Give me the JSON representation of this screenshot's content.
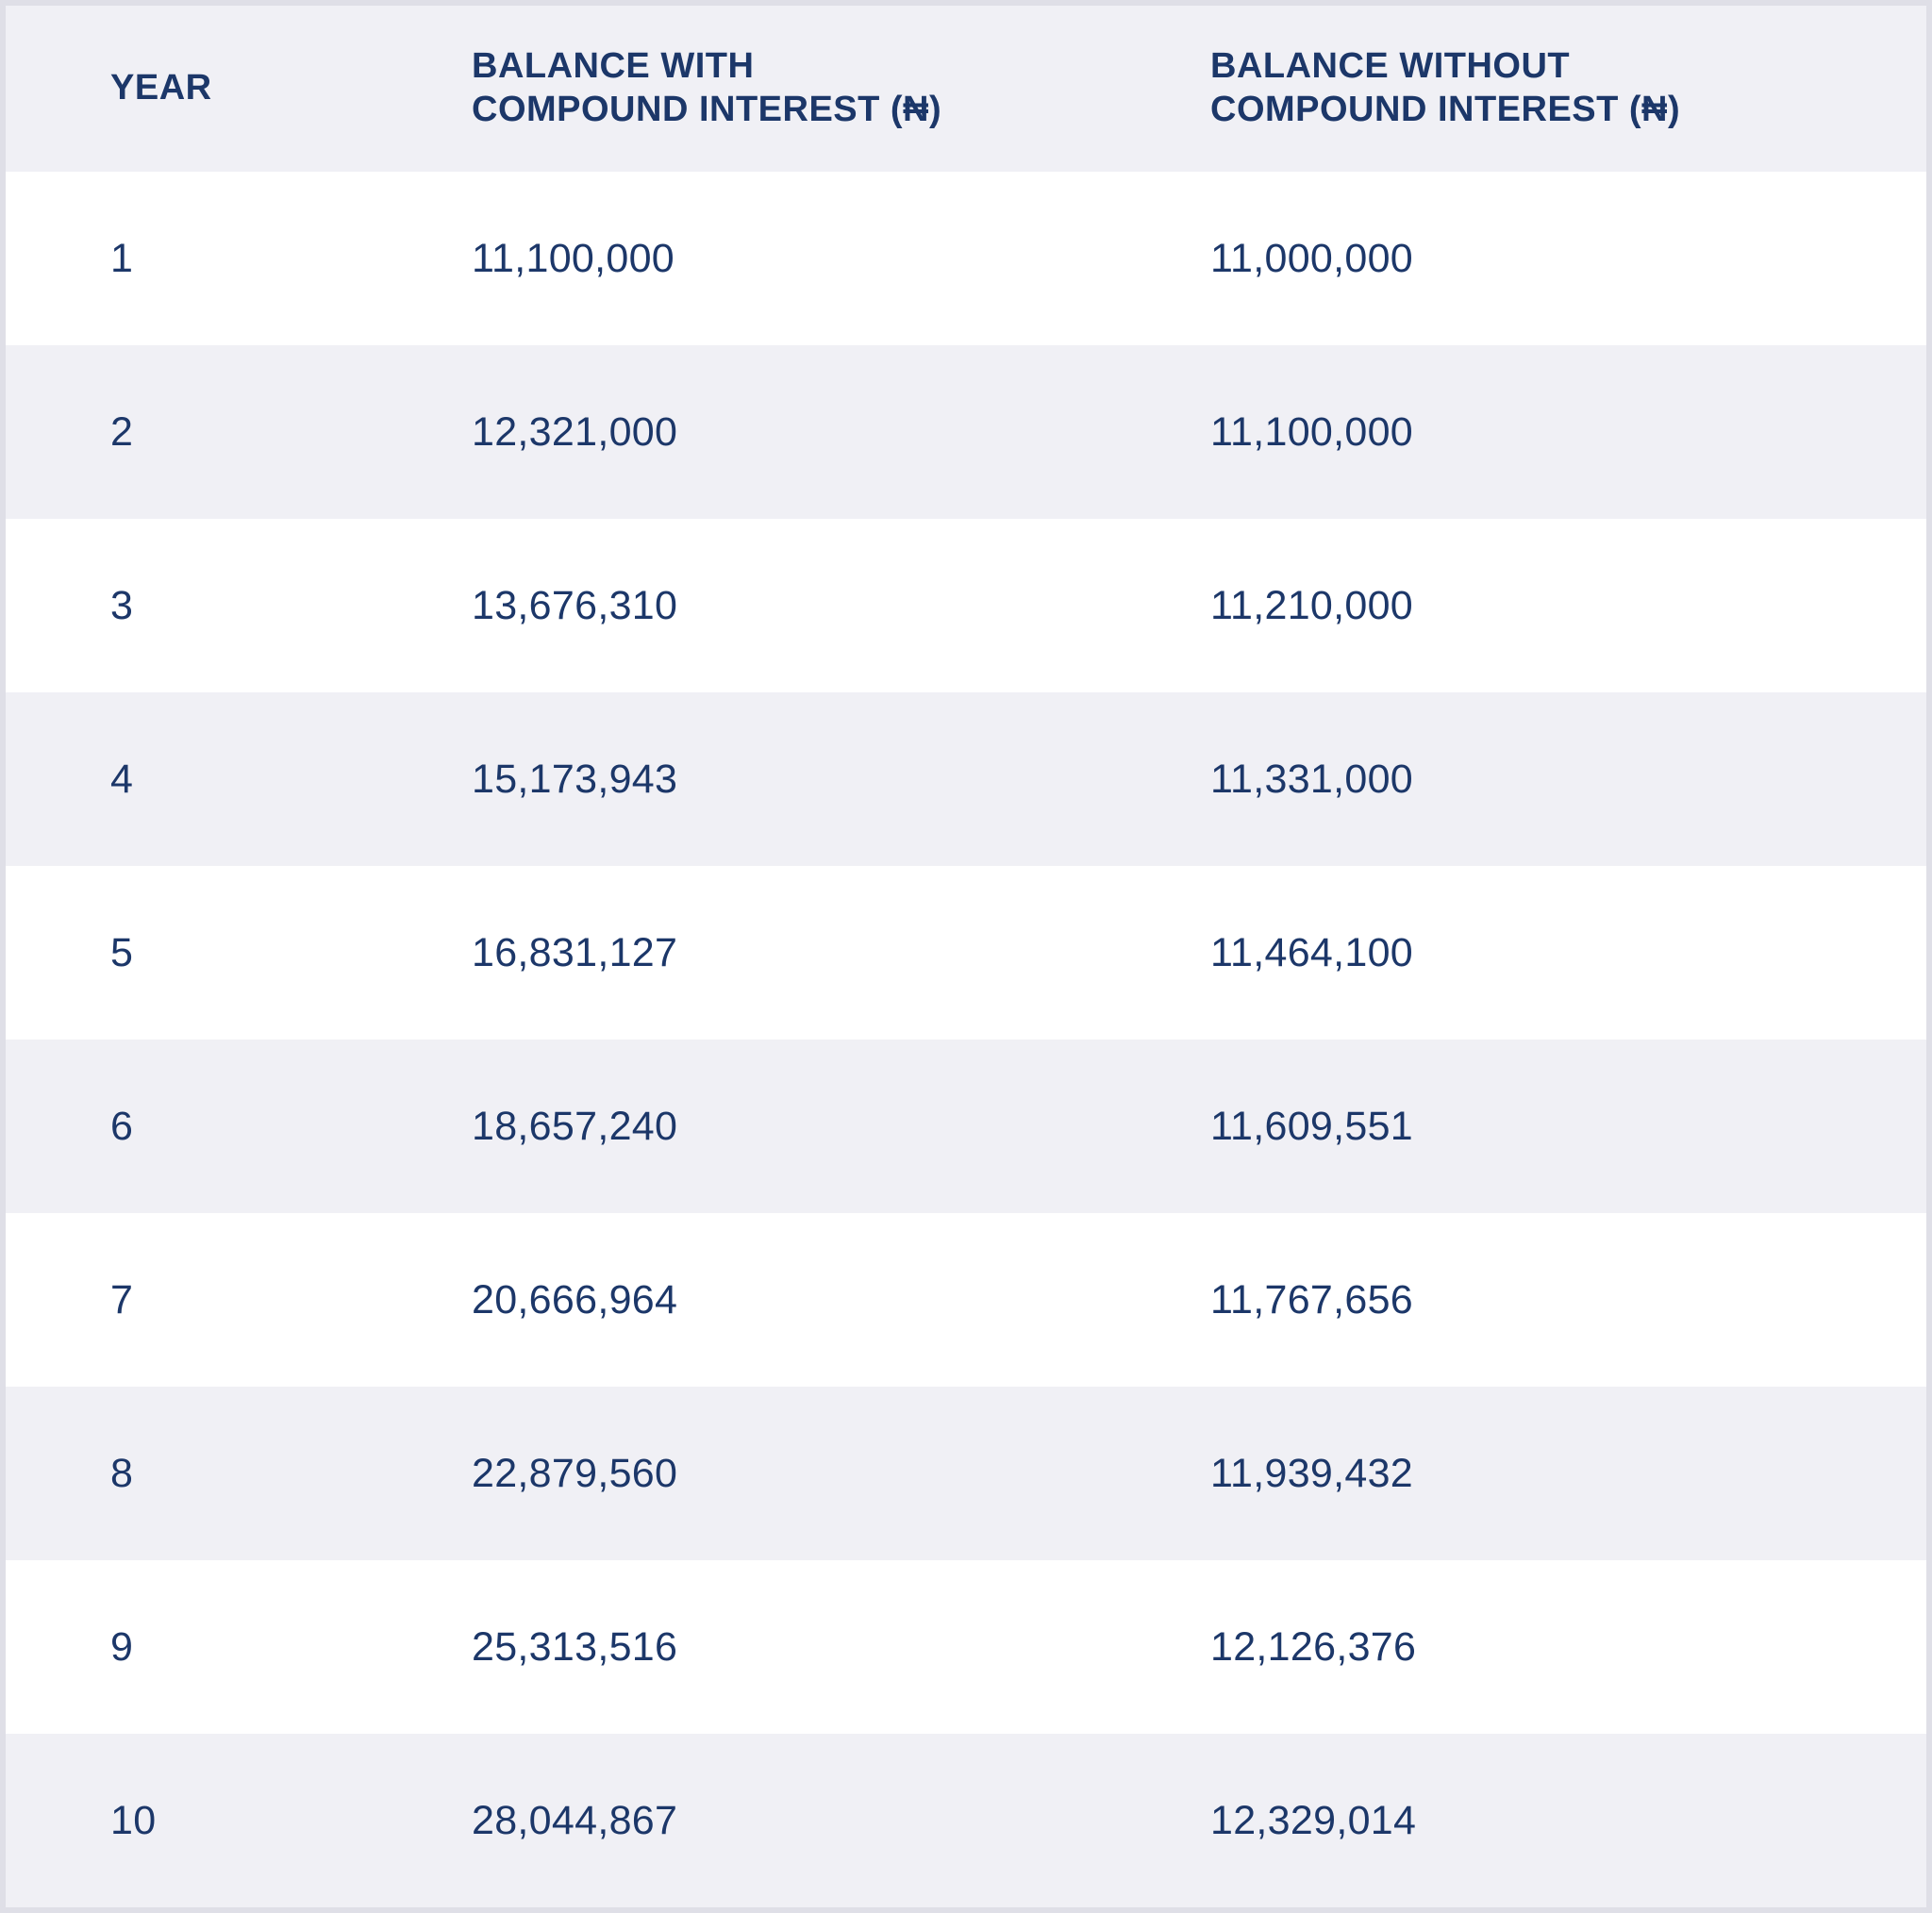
{
  "table": {
    "columns": [
      {
        "label": "YEAR"
      },
      {
        "label": "BALANCE WITH\nCOMPOUND INTEREST (₦)"
      },
      {
        "label": "BALANCE WITHOUT\nCOMPOUND INTEREST (₦)"
      }
    ],
    "rows": [
      {
        "year": "1",
        "with_ci": "11,100,000",
        "without_ci": "11,000,000"
      },
      {
        "year": "2",
        "with_ci": "12,321,000",
        "without_ci": "11,100,000"
      },
      {
        "year": "3",
        "with_ci": "13,676,310",
        "without_ci": "11,210,000"
      },
      {
        "year": "4",
        "with_ci": "15,173,943",
        "without_ci": "11,331,000"
      },
      {
        "year": "5",
        "with_ci": "16,831,127",
        "without_ci": "11,464,100"
      },
      {
        "year": "6",
        "with_ci": "18,657,240",
        "without_ci": "11,609,551"
      },
      {
        "year": "7",
        "with_ci": "20,666,964",
        "without_ci": "11,767,656"
      },
      {
        "year": "8",
        "with_ci": "22,879,560",
        "without_ci": "11,939,432"
      },
      {
        "year": "9",
        "with_ci": "25,313,516",
        "without_ci": "12,126,376"
      },
      {
        "year": "10",
        "with_ci": "28,044,867",
        "without_ci": "12,329,014"
      }
    ]
  },
  "chart_data": {
    "type": "table",
    "title": "",
    "columns": [
      "YEAR",
      "BALANCE WITH COMPOUND INTEREST (₦)",
      "BALANCE WITHOUT COMPOUND INTEREST (₦)"
    ],
    "categories": [
      1,
      2,
      3,
      4,
      5,
      6,
      7,
      8,
      9,
      10
    ],
    "series": [
      {
        "name": "Balance with compound interest (₦)",
        "values": [
          11100000,
          12321000,
          13676310,
          15173943,
          16831127,
          18657240,
          20666964,
          22879560,
          25313516,
          28044867
        ]
      },
      {
        "name": "Balance without compound interest (₦)",
        "values": [
          11000000,
          11100000,
          11210000,
          11331000,
          11464100,
          11609551,
          11767656,
          11939432,
          12126376,
          12329014
        ]
      }
    ],
    "layout_hints": {
      "row_striping": true,
      "header_background": "#f0f0f5",
      "stripe_background": "#f0f0f5"
    }
  },
  "colors": {
    "text": "#1c3769",
    "header_bg": "#f0f0f5",
    "row_alt_bg": "#f0f0f5",
    "row_bg": "#ffffff",
    "frame_border": "#dfdfe7"
  }
}
